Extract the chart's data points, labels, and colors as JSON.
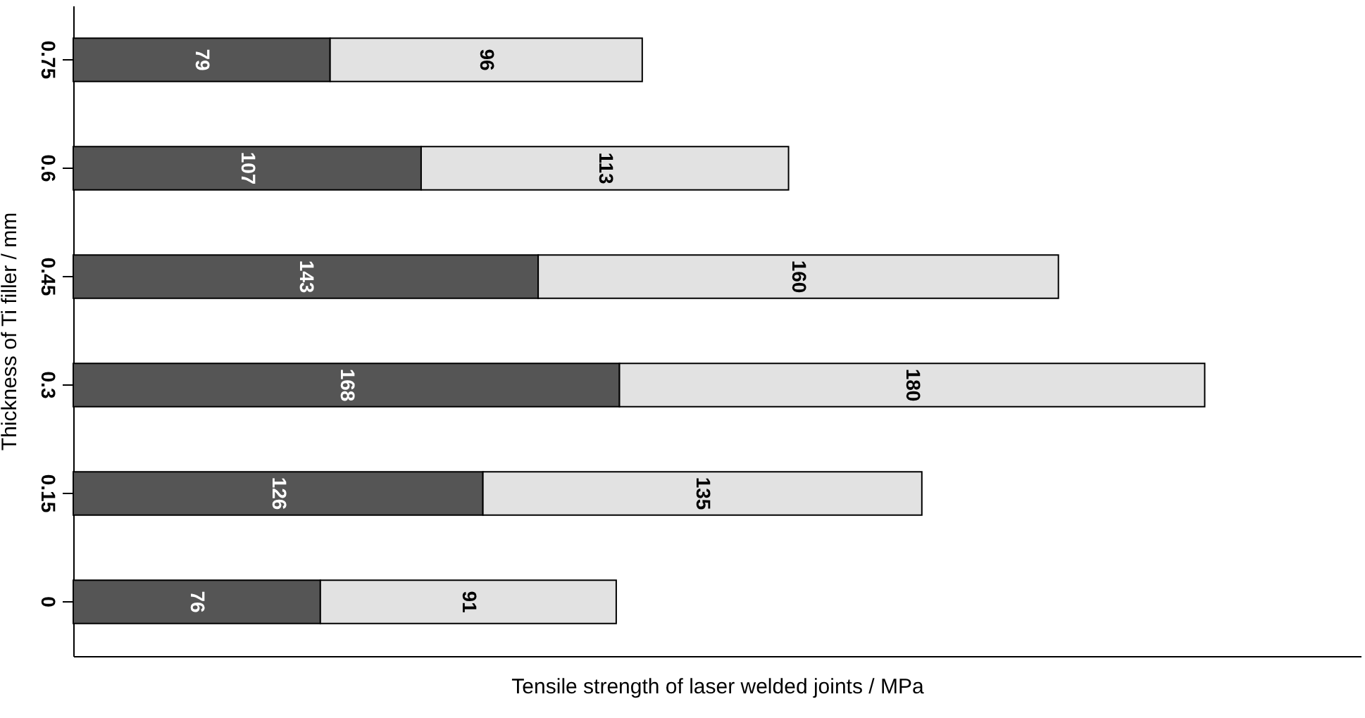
{
  "chart_data": {
    "type": "bar",
    "orientation": "horizontal",
    "stacked": true,
    "xlabel": "Tensile strength of laser welded joints / MPa",
    "ylabel": "Thickness of Ti filler / mm",
    "categories": [
      "0.75",
      "0.6",
      "0.45",
      "0.3",
      "0.15",
      "0"
    ],
    "series": [
      {
        "color": "#555555",
        "values": [
          79,
          107,
          143,
          168,
          126,
          76
        ]
      },
      {
        "color": "#e2e2e2",
        "values": [
          96,
          113,
          160,
          180,
          135,
          91
        ]
      }
    ],
    "xlim": [
      0,
      396
    ],
    "tick_labels": "y",
    "data_labels": true,
    "grid": false
  }
}
